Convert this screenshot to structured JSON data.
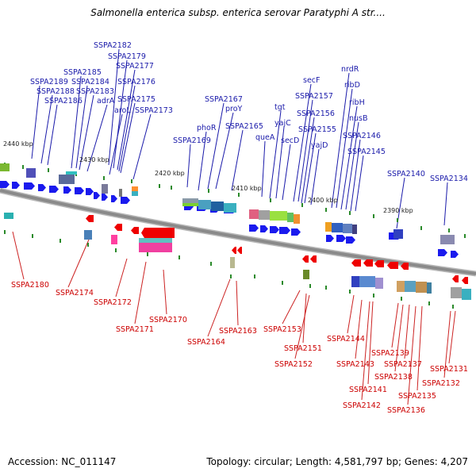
{
  "title": "Salmonella enterica subsp. enterica serovar Paratyphi A str....",
  "accession": "Accession: NC_011147",
  "summary": "Topology: circular; Length: 4,581,797 bp; Genes: 4,207",
  "colors": {
    "forward_label": "#1a1aaa",
    "reverse_label": "#cc0000",
    "forward_arrow": "#1a1aee",
    "reverse_arrow": "#ee0000",
    "backbone": "#8a8a8a"
  },
  "ticks": [
    {
      "label": "2440 kbp"
    },
    {
      "label": "2430 kbp"
    },
    {
      "label": "2420 kbp"
    },
    {
      "label": "2410 kbp"
    },
    {
      "label": "2400 kbp"
    },
    {
      "label": "2390 kbp"
    }
  ],
  "forward_genes": [
    "SSPA2182",
    "SSPA2179",
    "SSPA2185",
    "SSPA2177",
    "SSPA2189",
    "SSPA2184",
    "SSPA2176",
    "SSPA2188",
    "SSPA2183",
    "SSPA2186",
    "adrA",
    "SSPA2175",
    "aroL",
    "SSPA2173",
    "SSPA2167",
    "proY",
    "phoR",
    "SSPA2165",
    "SSPA2169",
    "tgt",
    "yajC",
    "queA",
    "secD",
    "secF",
    "SSPA2157",
    "SSPA2156",
    "SSPA2155",
    "yajD",
    "nrdR",
    "ribD",
    "ribH",
    "nusB",
    "SSPA2146",
    "SSPA2145",
    "SSPA2140",
    "SSPA2134"
  ],
  "reverse_genes": [
    "SSPA2180",
    "SSPA2174",
    "SSPA2172",
    "SSPA2171",
    "SSPA2170",
    "SSPA2164",
    "SSPA2163",
    "SSPA2153",
    "SSPA2151",
    "SSPA2152",
    "SSPA2144",
    "SSPA2143",
    "SSPA2139",
    "SSPA2141",
    "SSPA2137",
    "SSPA2138",
    "SSPA2142",
    "SSPA2135",
    "SSPA2136",
    "SSPA2131",
    "SSPA2132"
  ]
}
